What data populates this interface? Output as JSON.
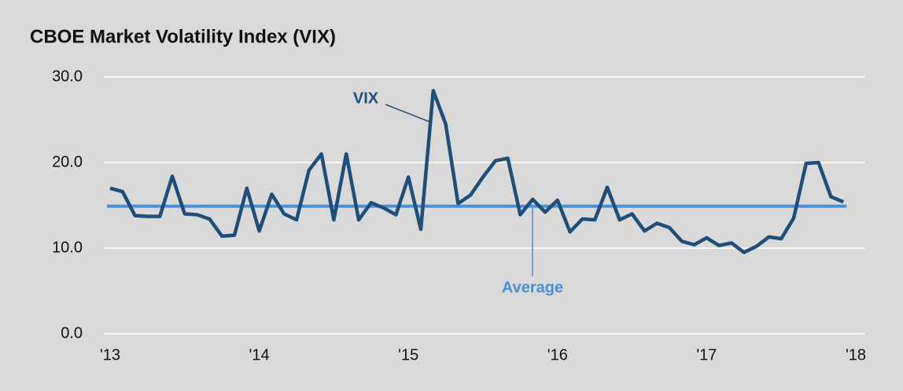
{
  "chart_data": {
    "type": "line",
    "title": "CBOE Market Volatility Index (VIX)",
    "categories": [
      "'13",
      null,
      null,
      null,
      null,
      null,
      null,
      null,
      null,
      null,
      null,
      null,
      "'14",
      null,
      null,
      null,
      null,
      null,
      null,
      null,
      null,
      null,
      null,
      null,
      "'15",
      null,
      null,
      null,
      null,
      null,
      null,
      null,
      null,
      null,
      null,
      null,
      "'16",
      null,
      null,
      null,
      null,
      null,
      null,
      null,
      null,
      null,
      null,
      null,
      "'17",
      null,
      null,
      null,
      null,
      null,
      null,
      null,
      null,
      null,
      null,
      null,
      "'18"
    ],
    "series": [
      {
        "name": "VIX",
        "color": "#1f4e79",
        "values": [
          17.0,
          16.6,
          13.8,
          13.7,
          13.7,
          18.4,
          14.0,
          13.9,
          13.4,
          11.4,
          11.5,
          17.0,
          12.0,
          16.3,
          14.0,
          13.3,
          19.1,
          21.0,
          13.3,
          21.0,
          13.3,
          15.3,
          14.7,
          13.9,
          18.3,
          12.2,
          28.4,
          24.5,
          15.2,
          16.2,
          18.3,
          20.2,
          20.5,
          13.9,
          15.7,
          14.2,
          15.6,
          11.9,
          13.4,
          13.3,
          17.1,
          13.3,
          14.0,
          12.0,
          12.9,
          12.4,
          10.8,
          10.4,
          11.2,
          10.3,
          10.6,
          9.5,
          10.2,
          11.3,
          11.1,
          13.5,
          19.9,
          20.0,
          16.0,
          15.4,
          null
        ]
      }
    ],
    "reference_line": {
      "name": "Average",
      "value": 14.9,
      "color": "#4a90d9"
    },
    "ylim": [
      0,
      30
    ],
    "yticks": [
      {
        "value": 0,
        "label": "0.0"
      },
      {
        "value": 10,
        "label": "10.0"
      },
      {
        "value": 20,
        "label": "20.0"
      },
      {
        "value": 30,
        "label": "30.0"
      }
    ],
    "grid": true
  }
}
